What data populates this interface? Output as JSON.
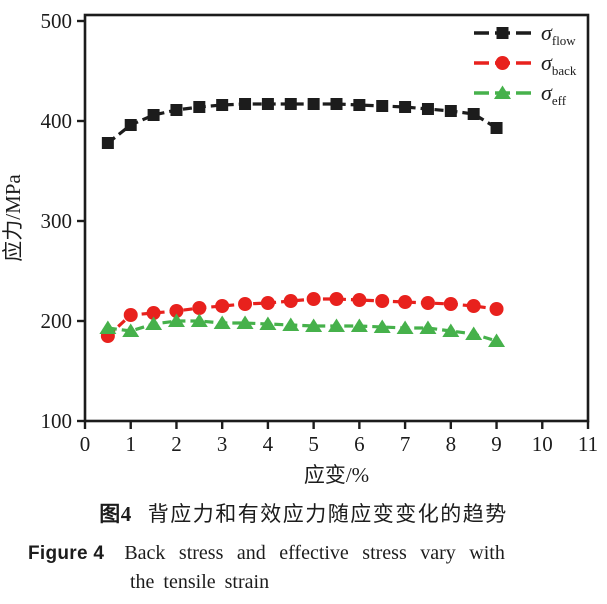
{
  "caption": {
    "zh_label": "图4",
    "zh_text": "背应力和有效应力随应变变化的趋势",
    "en_label": "Figure 4",
    "en_line1": "Back stress and effective stress vary with",
    "en_line2": "the tensile strain"
  },
  "chart_data": {
    "type": "line",
    "title": "",
    "xlabel": "应变/%",
    "ylabel": "应力/MPa",
    "xlim": [
      0,
      11
    ],
    "ylim": [
      100,
      506
    ],
    "xticks": [
      0,
      1,
      2,
      3,
      4,
      5,
      6,
      7,
      8,
      9,
      10,
      11
    ],
    "yticks": [
      100,
      200,
      300,
      400,
      500
    ],
    "grid": false,
    "line_style": "dashed",
    "legend_position": "top-right-inside",
    "axis_color": "#1c1c1c",
    "x": [
      0.5,
      1.0,
      1.5,
      2.0,
      2.5,
      3.0,
      3.5,
      4.0,
      4.5,
      5.0,
      5.5,
      6.0,
      6.5,
      7.0,
      7.5,
      8.0,
      8.5,
      9.0
    ],
    "series": [
      {
        "name": "sigma-flow",
        "label_symbol": "σ",
        "label_subscript": "flow",
        "marker": "square",
        "color": "#1c1c1c",
        "values": [
          378,
          396,
          406,
          411,
          414,
          416,
          417,
          417,
          417,
          417,
          417,
          416,
          415,
          414,
          412,
          410,
          407,
          393
        ]
      },
      {
        "name": "sigma-back",
        "label_symbol": "σ",
        "label_subscript": "back",
        "marker": "circle",
        "color": "#e8211d",
        "values": [
          185,
          206,
          208,
          210,
          213,
          215,
          217,
          218,
          220,
          222,
          222,
          221,
          220,
          219,
          218,
          217,
          215,
          212
        ]
      },
      {
        "name": "sigma-eff",
        "label_symbol": "σ",
        "label_subscript": "eff",
        "marker": "triangle",
        "color": "#46b14b",
        "values": [
          193,
          190,
          197,
          200,
          200,
          198,
          198,
          197,
          196,
          195,
          195,
          195,
          194,
          193,
          193,
          190,
          187,
          180
        ]
      }
    ]
  }
}
